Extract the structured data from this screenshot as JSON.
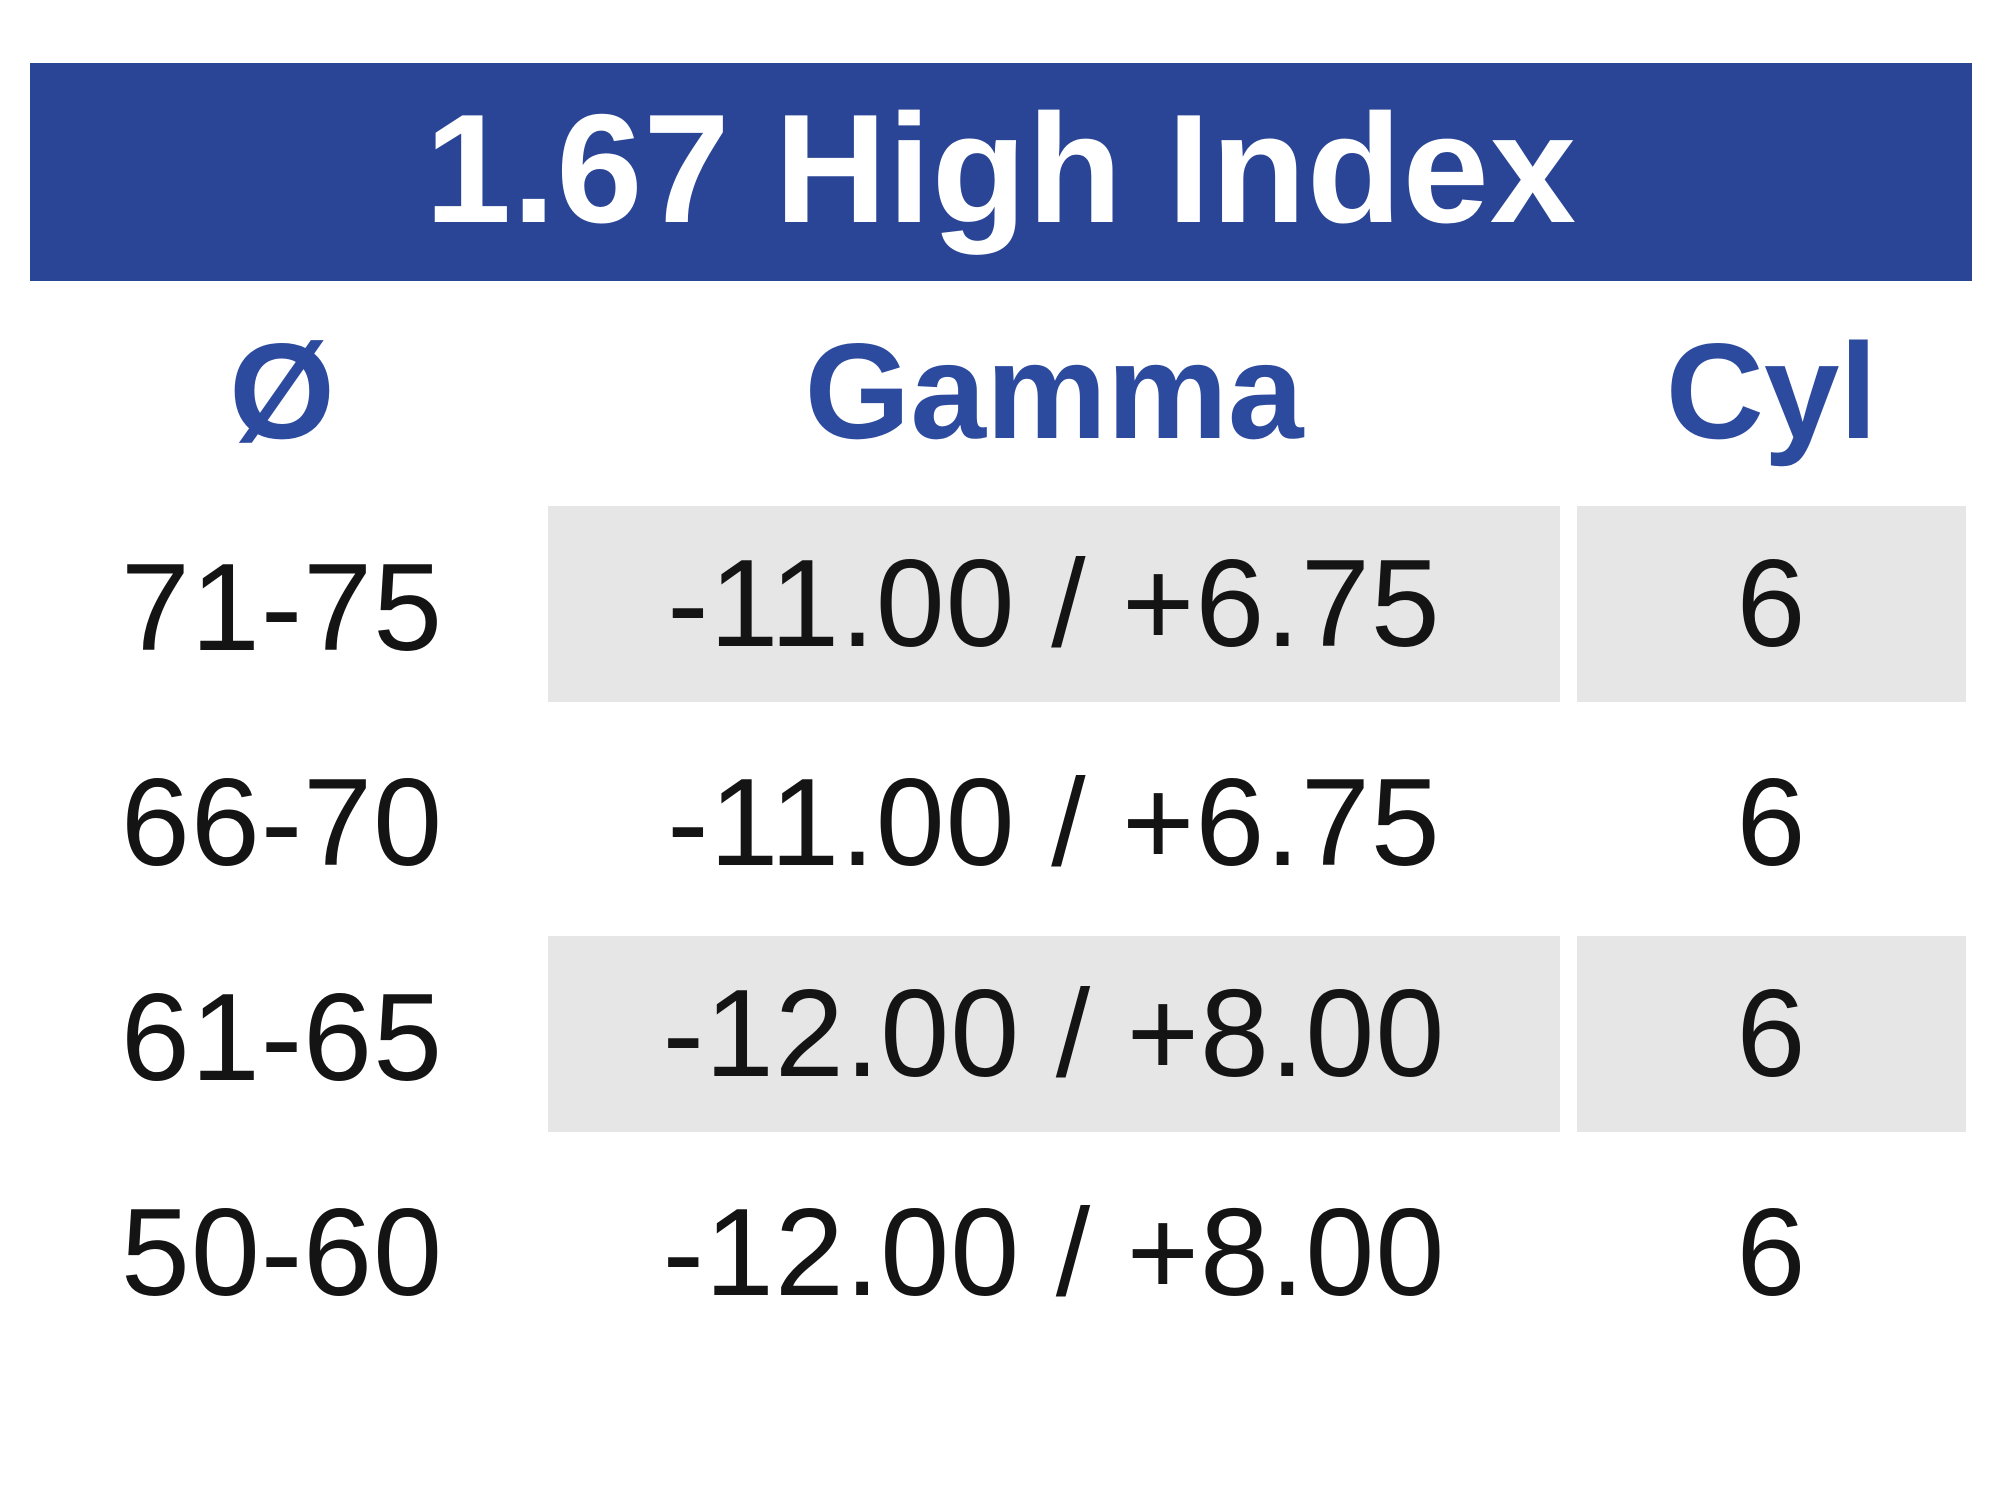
{
  "chart_data": {
    "type": "table",
    "title": "1.67 High Index",
    "columns": [
      "Ø",
      "Gamma",
      "Cyl"
    ],
    "rows": [
      [
        "71-75",
        "-11.00 / +6.75",
        "6"
      ],
      [
        "66-70",
        "-11.00 / +6.75",
        "6"
      ],
      [
        "61-65",
        "-12.00 / +8.00",
        "6"
      ],
      [
        "50-60",
        "-12.00 / +8.00",
        "6"
      ]
    ],
    "shaded_row_indexes": [
      0,
      2
    ],
    "layout_hints": {
      "shaded_columns": [
        "Gamma",
        "Cyl"
      ],
      "grid": "off",
      "title_position": "top-banner"
    },
    "colors": {
      "title_bar_background": "#2a4596",
      "title_text": "#ffffff",
      "column_header_text": "#2c4a9e",
      "row_shade": "#e6e6e6",
      "data_text": "#141414",
      "page_background": "#ffffff"
    }
  }
}
